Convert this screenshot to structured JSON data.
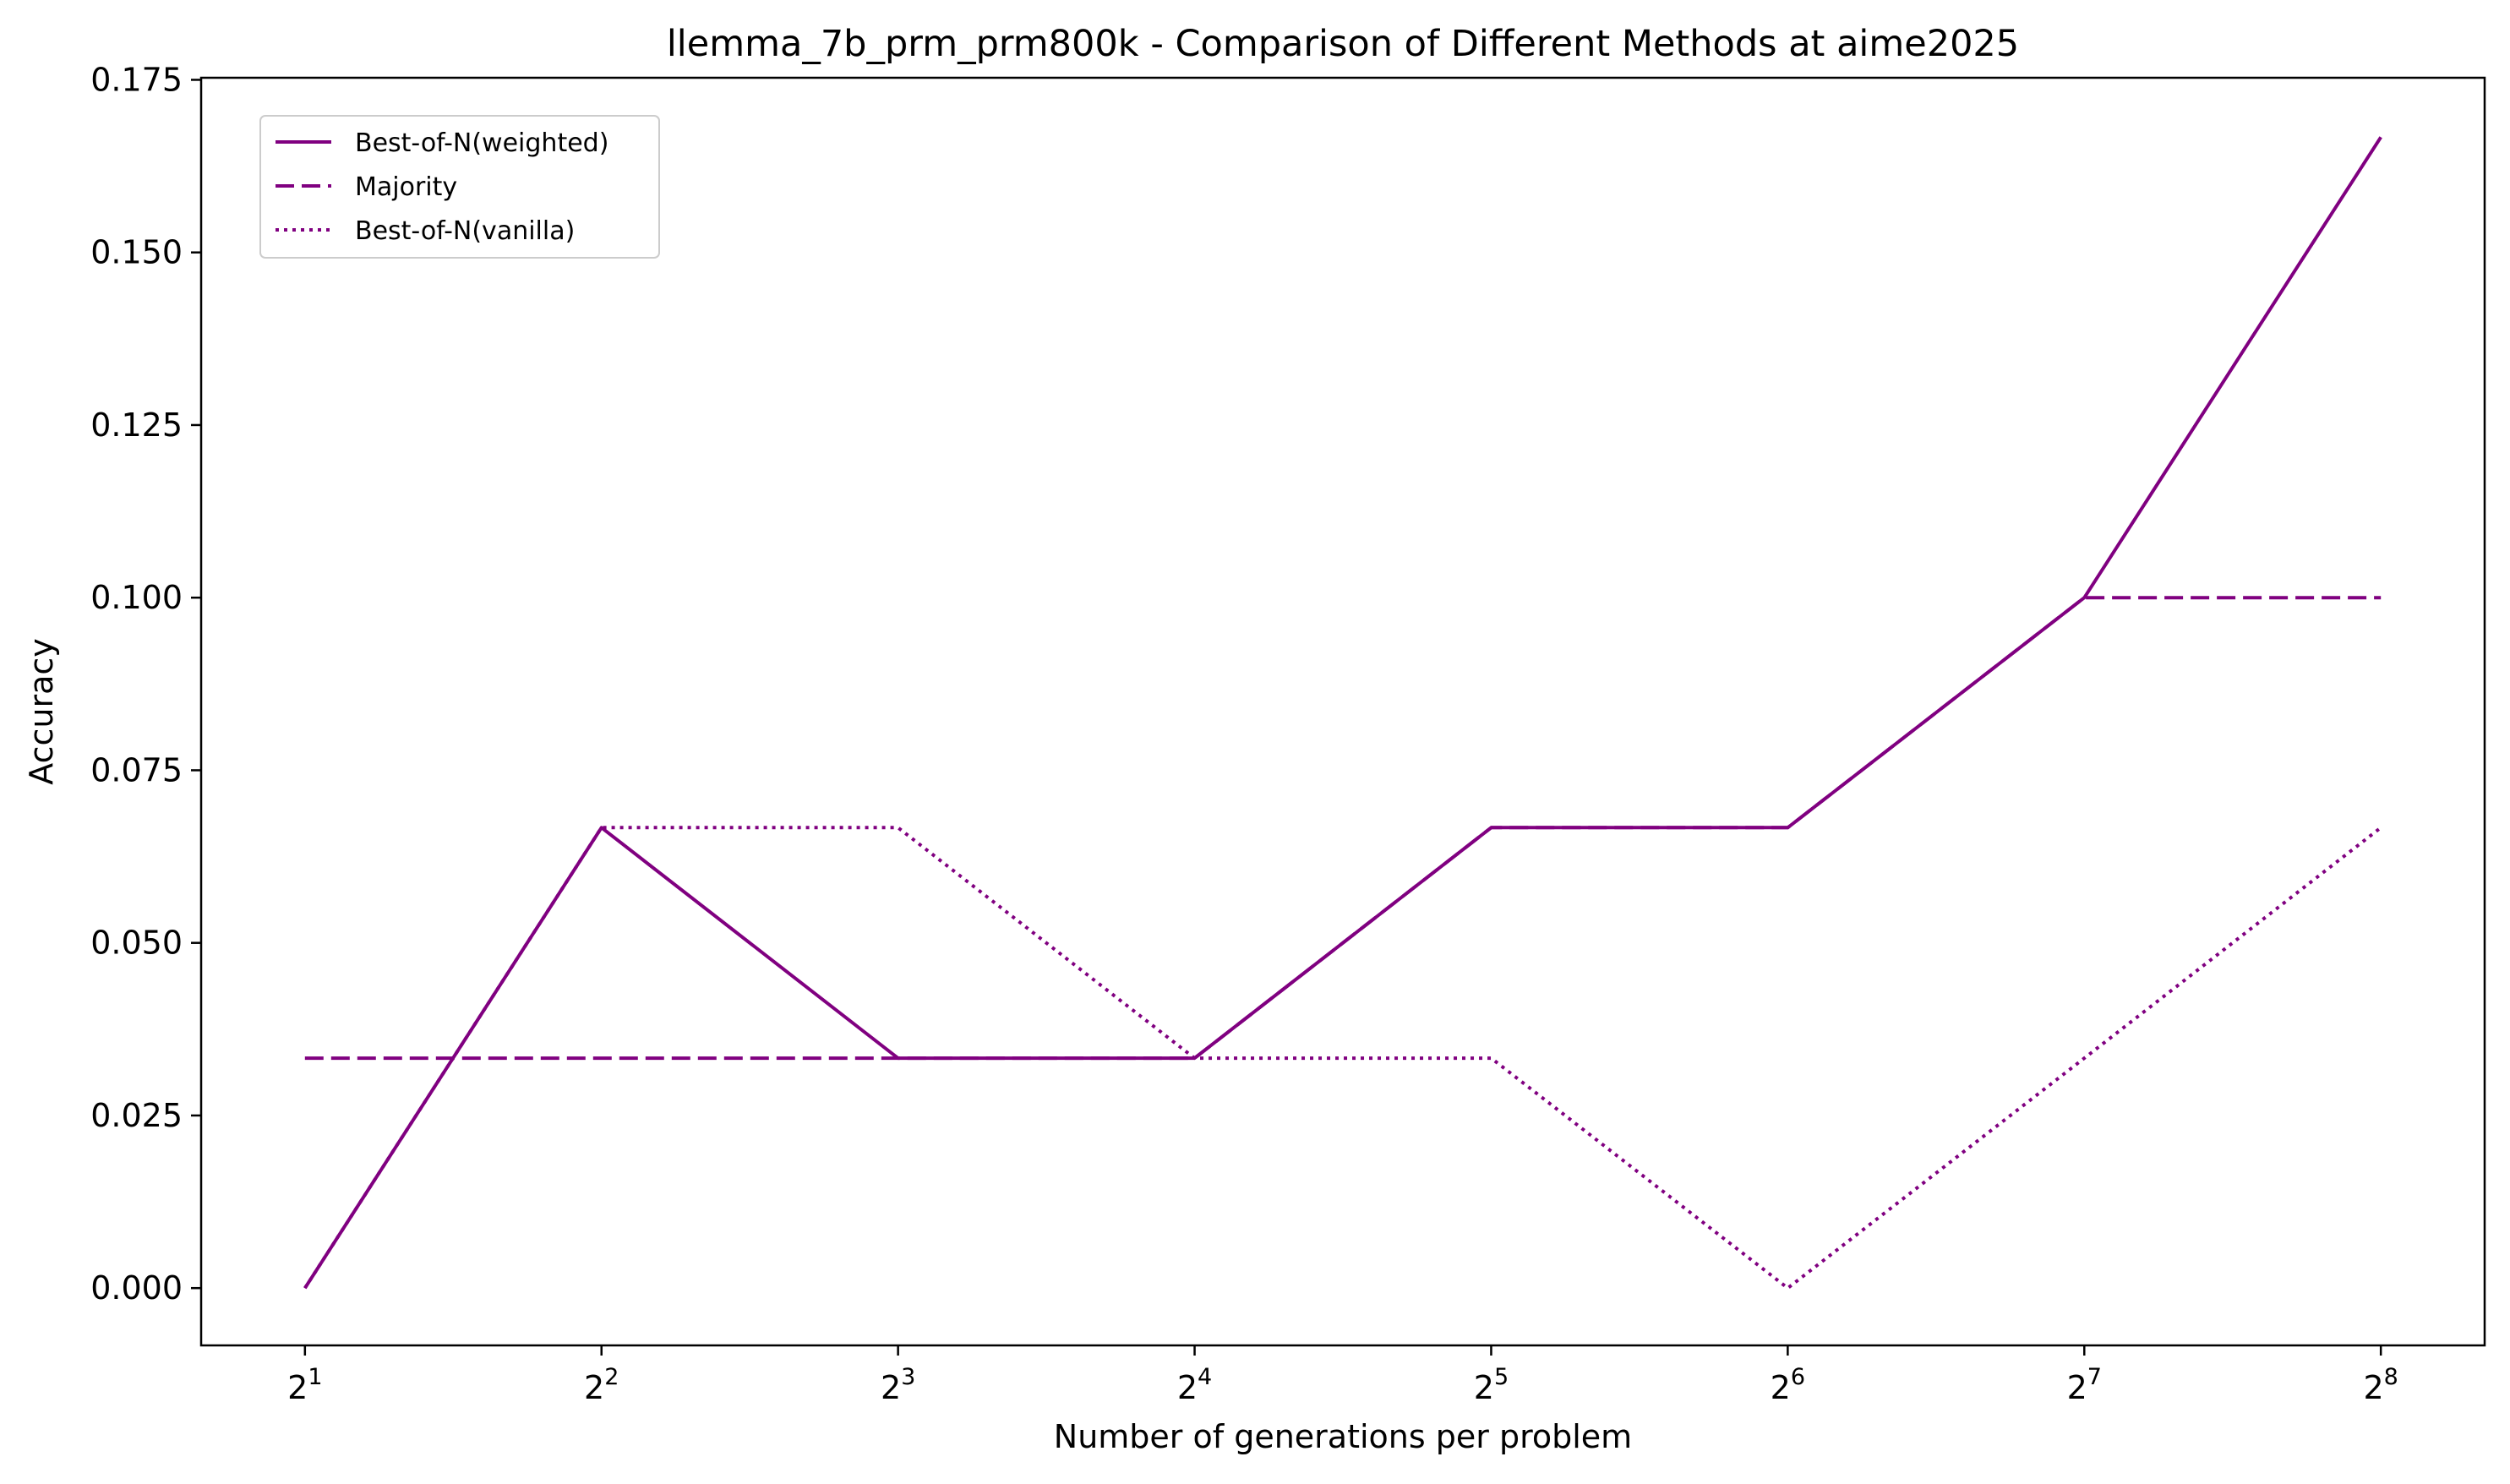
{
  "chart_data": {
    "type": "line",
    "title": "llemma_7b_prm_prm800k - Comparison of Different Methods at aime2025",
    "xlabel": "Number of generations per problem",
    "ylabel": "Accuracy",
    "x": [
      2,
      4,
      8,
      16,
      32,
      64,
      128,
      256
    ],
    "x_scale": "log2",
    "x_tick_labels": [
      {
        "base": "2",
        "exp": "1"
      },
      {
        "base": "2",
        "exp": "2"
      },
      {
        "base": "2",
        "exp": "3"
      },
      {
        "base": "2",
        "exp": "4"
      },
      {
        "base": "2",
        "exp": "5"
      },
      {
        "base": "2",
        "exp": "6"
      },
      {
        "base": "2",
        "exp": "7"
      },
      {
        "base": "2",
        "exp": "8"
      }
    ],
    "ylim": [
      -0.0083,
      0.1753
    ],
    "y_ticks": [
      0.0,
      0.025,
      0.05,
      0.075,
      0.1,
      0.125,
      0.15,
      0.175
    ],
    "y_tick_labels": [
      "0.000",
      "0.025",
      "0.050",
      "0.075",
      "0.100",
      "0.125",
      "0.150",
      "0.175"
    ],
    "grid": false,
    "legend_position": "top-left",
    "series": [
      {
        "name": "Best-of-N(weighted)",
        "style": "solid",
        "color": "#800080",
        "values": [
          0.0,
          0.0667,
          0.0333,
          0.0333,
          0.0667,
          0.0667,
          0.1,
          0.1667
        ]
      },
      {
        "name": "Majority",
        "style": "dashed",
        "color": "#800080",
        "values": [
          0.0333,
          0.0333,
          0.0333,
          0.0333,
          0.0667,
          0.0667,
          0.1,
          0.1
        ]
      },
      {
        "name": "Best-of-N(vanilla)",
        "style": "dotted",
        "color": "#800080",
        "values": [
          0.0,
          0.0667,
          0.0667,
          0.0333,
          0.0333,
          0.0,
          0.0333,
          0.0667
        ]
      }
    ]
  }
}
